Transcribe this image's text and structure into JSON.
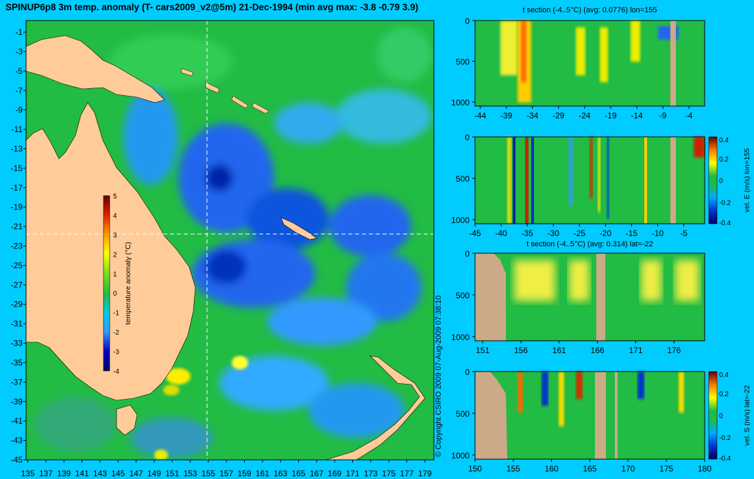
{
  "main_title": "SPINUP6p8 3m temp. anomaly (T- cars2009_v2@5m) 21-Dec-1994 (min avg max: -3.8 -0.79 3.9)",
  "copyright": "© Copyright CSIRO 2009   07-Aug-2009 07:38:10",
  "colors": {
    "background": "#00ccff",
    "land": "#ffcc99",
    "section_land": "#ccaa88",
    "ocean_base": "#22bb44",
    "guide_line": "#ffffff"
  },
  "chart_data": [
    {
      "id": "map",
      "type": "heatmap",
      "title": "SPINUP6p8 3m temp. anomaly (T- cars2009_v2@5m) 21-Dec-1994 (min avg max: -3.8 -0.79 3.9)",
      "x_ticks": [
        135,
        137,
        139,
        141,
        143,
        145,
        147,
        149,
        151,
        153,
        155,
        157,
        159,
        161,
        163,
        165,
        167,
        169,
        171,
        173,
        175,
        177,
        179
      ],
      "y_ticks": [
        -1,
        -3,
        -5,
        -7,
        -9,
        -11,
        -13,
        -15,
        -17,
        -19,
        -21,
        -23,
        -25,
        -27,
        -29,
        -31,
        -33,
        -35,
        -37,
        -39,
        -41,
        -43,
        -45
      ],
      "xlim": [
        134.8,
        180
      ],
      "ylim": [
        -45,
        0.2
      ],
      "crosshair": {
        "lon": 155,
        "lat": -22
      },
      "colorbar": {
        "label": "temperature anomaly (°C)",
        "ticks": [
          5,
          4,
          3,
          2,
          1,
          0,
          -1,
          -2,
          -3,
          -4
        ],
        "range": [
          -4,
          5
        ]
      },
      "stats": {
        "min": -3.8,
        "avg": -0.79,
        "max": 3.9
      }
    },
    {
      "id": "section-t-lon",
      "type": "heatmap",
      "title": "t section (-4..5°C) (avg: 0.0776) lon=155",
      "x_ticks": [
        -44,
        -39,
        -34,
        -29,
        -24,
        -19,
        -14,
        -9,
        -4
      ],
      "xlim": [
        -45,
        -1
      ],
      "y_ticks": [
        0,
        500,
        1000
      ],
      "ylim": [
        1050,
        0
      ]
    },
    {
      "id": "section-v-lon",
      "type": "heatmap",
      "title": "",
      "x_ticks": [
        -45,
        -40,
        -35,
        -30,
        -25,
        -20,
        -15,
        -10,
        -5
      ],
      "xlim": [
        -45,
        -1
      ],
      "y_ticks": [
        0,
        500,
        1000
      ],
      "ylim": [
        1050,
        0
      ],
      "colorbar": {
        "label": "vel. E (m/s) lon=155",
        "ticks": [
          0.4,
          0.2,
          0,
          -0.2,
          -0.4
        ],
        "range": [
          -0.4,
          0.4
        ]
      }
    },
    {
      "id": "section-t-lat",
      "type": "heatmap",
      "title": "t section (-4..5°C) (avg: 0.314) lat=-22",
      "x_ticks": [
        151,
        156,
        161,
        166,
        171,
        176
      ],
      "xlim": [
        150,
        180
      ],
      "y_ticks": [
        0,
        500,
        1000
      ],
      "ylim": [
        1050,
        0
      ]
    },
    {
      "id": "section-v-lat",
      "type": "heatmap",
      "title": "",
      "x_ticks": [
        150,
        155,
        160,
        165,
        170,
        175,
        180
      ],
      "xlim": [
        150,
        180
      ],
      "y_ticks": [
        0,
        500,
        1000
      ],
      "ylim": [
        1050,
        0
      ],
      "colorbar": {
        "label": "vel. S (m/s) lat=-22",
        "ticks": [
          0.4,
          0.2,
          0,
          -0.2,
          -0.4
        ],
        "range": [
          -0.4,
          0.4
        ]
      }
    }
  ]
}
